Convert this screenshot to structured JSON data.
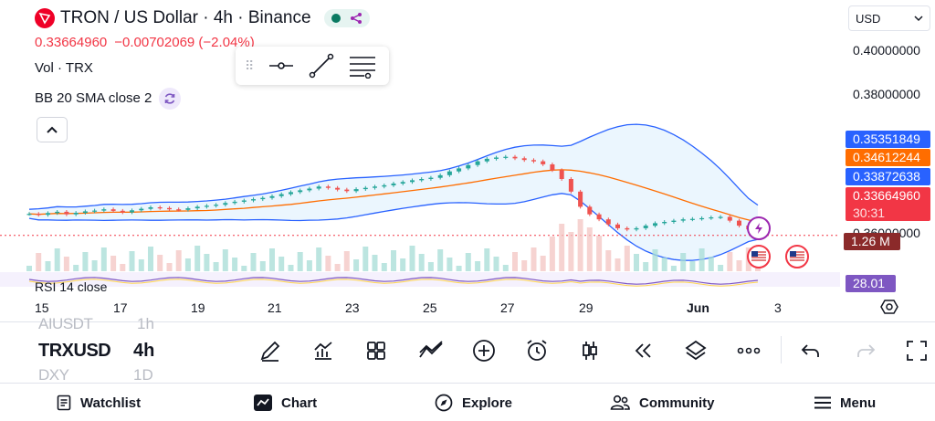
{
  "header": {
    "title": "TRON / US Dollar · 4h · Binance",
    "price": "0.33664960",
    "change": "−0.00702069 (−2.04%)"
  },
  "indicators": {
    "vol": "Vol · TRX",
    "bb": "BB 20 SMA close 2",
    "rsi": "RSI 14 close"
  },
  "currency": "USD",
  "price_axis": {
    "ticks": [
      "0.40000000",
      "0.38000000",
      "0.36000000"
    ],
    "tag_upper": "0.35351849",
    "tag_mid": "0.34612244",
    "tag_lower": "0.33872638",
    "tag_last": "0.33664960",
    "countdown": "30:31",
    "volume": "1.26 M",
    "rsi": "28.01"
  },
  "time_axis": [
    "15",
    "17",
    "19",
    "21",
    "23",
    "25",
    "27",
    "29",
    "Jun",
    "3"
  ],
  "symbols": {
    "prev": "AIUSDT",
    "prev_interval": "1h",
    "current": "TRXUSD",
    "interval": "4h",
    "next": "DXY",
    "next_interval": "1D"
  },
  "nav": {
    "watchlist": "Watchlist",
    "chart": "Chart",
    "explore": "Explore",
    "community": "Community",
    "menu": "Menu"
  },
  "colors": {
    "up": "#26a69a",
    "down": "#ef5350",
    "bb_band": "#2962ff",
    "bb_basis": "#ff6d00",
    "rsi": "#7e57c2",
    "tag_blue": "#2962ff",
    "tag_orange": "#ff6d00",
    "tag_red": "#f23645",
    "vol_tag": "#8b2a2a",
    "rsi_tag": "#7e57c2"
  },
  "chart_data": {
    "type": "candlestick",
    "symbol": "TRXUSD",
    "interval": "4h",
    "x_labels": [
      "15",
      "17",
      "19",
      "21",
      "23",
      "25",
      "27",
      "29",
      "Jun",
      "3"
    ],
    "ylim": [
      0.325,
      0.41
    ],
    "grid": false,
    "last_close": 0.3366496,
    "bb_upper_last": 0.35351849,
    "bb_basis_last": 0.34612244,
    "bb_lower_last": 0.33872638,
    "volume_last": "1.26 M",
    "rsi_last": 28.01,
    "series_close": [
      0.3452,
      0.3448,
      0.3455,
      0.346,
      0.345,
      0.3456,
      0.3462,
      0.3465,
      0.347,
      0.3464,
      0.3458,
      0.3466,
      0.3472,
      0.3478,
      0.3475,
      0.347,
      0.3468,
      0.3474,
      0.348,
      0.3484,
      0.3488,
      0.3495,
      0.35,
      0.3505,
      0.351,
      0.3515,
      0.3522,
      0.353,
      0.3538,
      0.3545,
      0.3552,
      0.356,
      0.3555,
      0.3548,
      0.3542,
      0.355,
      0.3555,
      0.356,
      0.3565,
      0.3572,
      0.3578,
      0.3585,
      0.359,
      0.3595,
      0.3605,
      0.362,
      0.3632,
      0.3645,
      0.366,
      0.367,
      0.3675,
      0.3678,
      0.3672,
      0.3665,
      0.366,
      0.3648,
      0.3625,
      0.359,
      0.354,
      0.348,
      0.345,
      0.343,
      0.341,
      0.3395,
      0.339,
      0.3395,
      0.3405,
      0.3415,
      0.342,
      0.3425,
      0.343,
      0.3432,
      0.3435,
      0.3438,
      0.344,
      0.3425,
      0.3405,
      0.339,
      0.3366
    ]
  }
}
